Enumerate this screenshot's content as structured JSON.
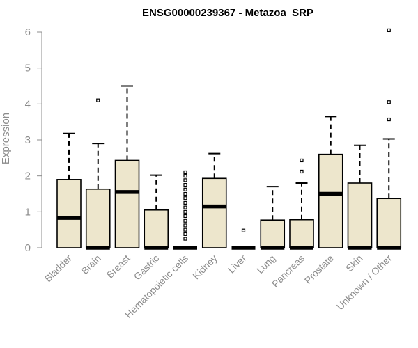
{
  "chart_data": {
    "type": "boxplot",
    "title": "ENSG00000239367 - Metazoa_SRP",
    "xlabel": "",
    "ylabel": "Expression",
    "ylim": [
      0,
      6
    ],
    "yticks": [
      "0",
      "1",
      "2",
      "3",
      "4",
      "5",
      "6"
    ],
    "box_color": "#ede6cc",
    "categories": [
      "Bladder",
      "Brain",
      "Breast",
      "Gastric",
      "Hematopoietic cells",
      "Kidney",
      "Liver",
      "Lung",
      "Pancreas",
      "Prostate",
      "Skin",
      "Unknown / Other"
    ],
    "boxes": [
      {
        "q1": 0,
        "median": 0.83,
        "q3": 1.9,
        "whisker_low": 0,
        "whisker_high": 3.18,
        "outliers": []
      },
      {
        "q1": 0,
        "median": 0,
        "q3": 1.63,
        "whisker_low": 0,
        "whisker_high": 2.9,
        "outliers": [
          4.1
        ]
      },
      {
        "q1": 0,
        "median": 1.55,
        "q3": 2.43,
        "whisker_low": 0,
        "whisker_high": 4.5,
        "outliers": []
      },
      {
        "q1": 0,
        "median": 0,
        "q3": 1.05,
        "whisker_low": 0,
        "whisker_high": 2.02,
        "outliers": []
      },
      {
        "q1": 0,
        "median": 0,
        "q3": 0,
        "whisker_low": 0,
        "whisker_high": 0,
        "outliers": [
          0.25,
          0.38,
          0.5,
          0.62,
          0.75,
          0.88,
          1.0,
          1.12,
          1.25,
          1.38,
          1.5,
          1.62,
          1.75,
          1.88,
          2.0,
          2.1
        ]
      },
      {
        "q1": 0,
        "median": 1.15,
        "q3": 1.93,
        "whisker_low": 0,
        "whisker_high": 2.62,
        "outliers": []
      },
      {
        "q1": 0,
        "median": 0,
        "q3": 0,
        "whisker_low": 0,
        "whisker_high": 0,
        "outliers": [
          0.48
        ]
      },
      {
        "q1": 0,
        "median": 0,
        "q3": 0.77,
        "whisker_low": 0,
        "whisker_high": 1.7,
        "outliers": []
      },
      {
        "q1": 0,
        "median": 0,
        "q3": 0.78,
        "whisker_low": 0,
        "whisker_high": 1.8,
        "outliers": [
          2.12,
          2.43
        ]
      },
      {
        "q1": 0,
        "median": 1.5,
        "q3": 2.6,
        "whisker_low": 0,
        "whisker_high": 3.65,
        "outliers": []
      },
      {
        "q1": 0,
        "median": 0,
        "q3": 1.8,
        "whisker_low": 0,
        "whisker_high": 2.85,
        "outliers": []
      },
      {
        "q1": 0,
        "median": 0,
        "q3": 1.37,
        "whisker_low": 0,
        "whisker_high": 3.03,
        "outliers": [
          3.57,
          4.05,
          6.05
        ]
      }
    ]
  }
}
